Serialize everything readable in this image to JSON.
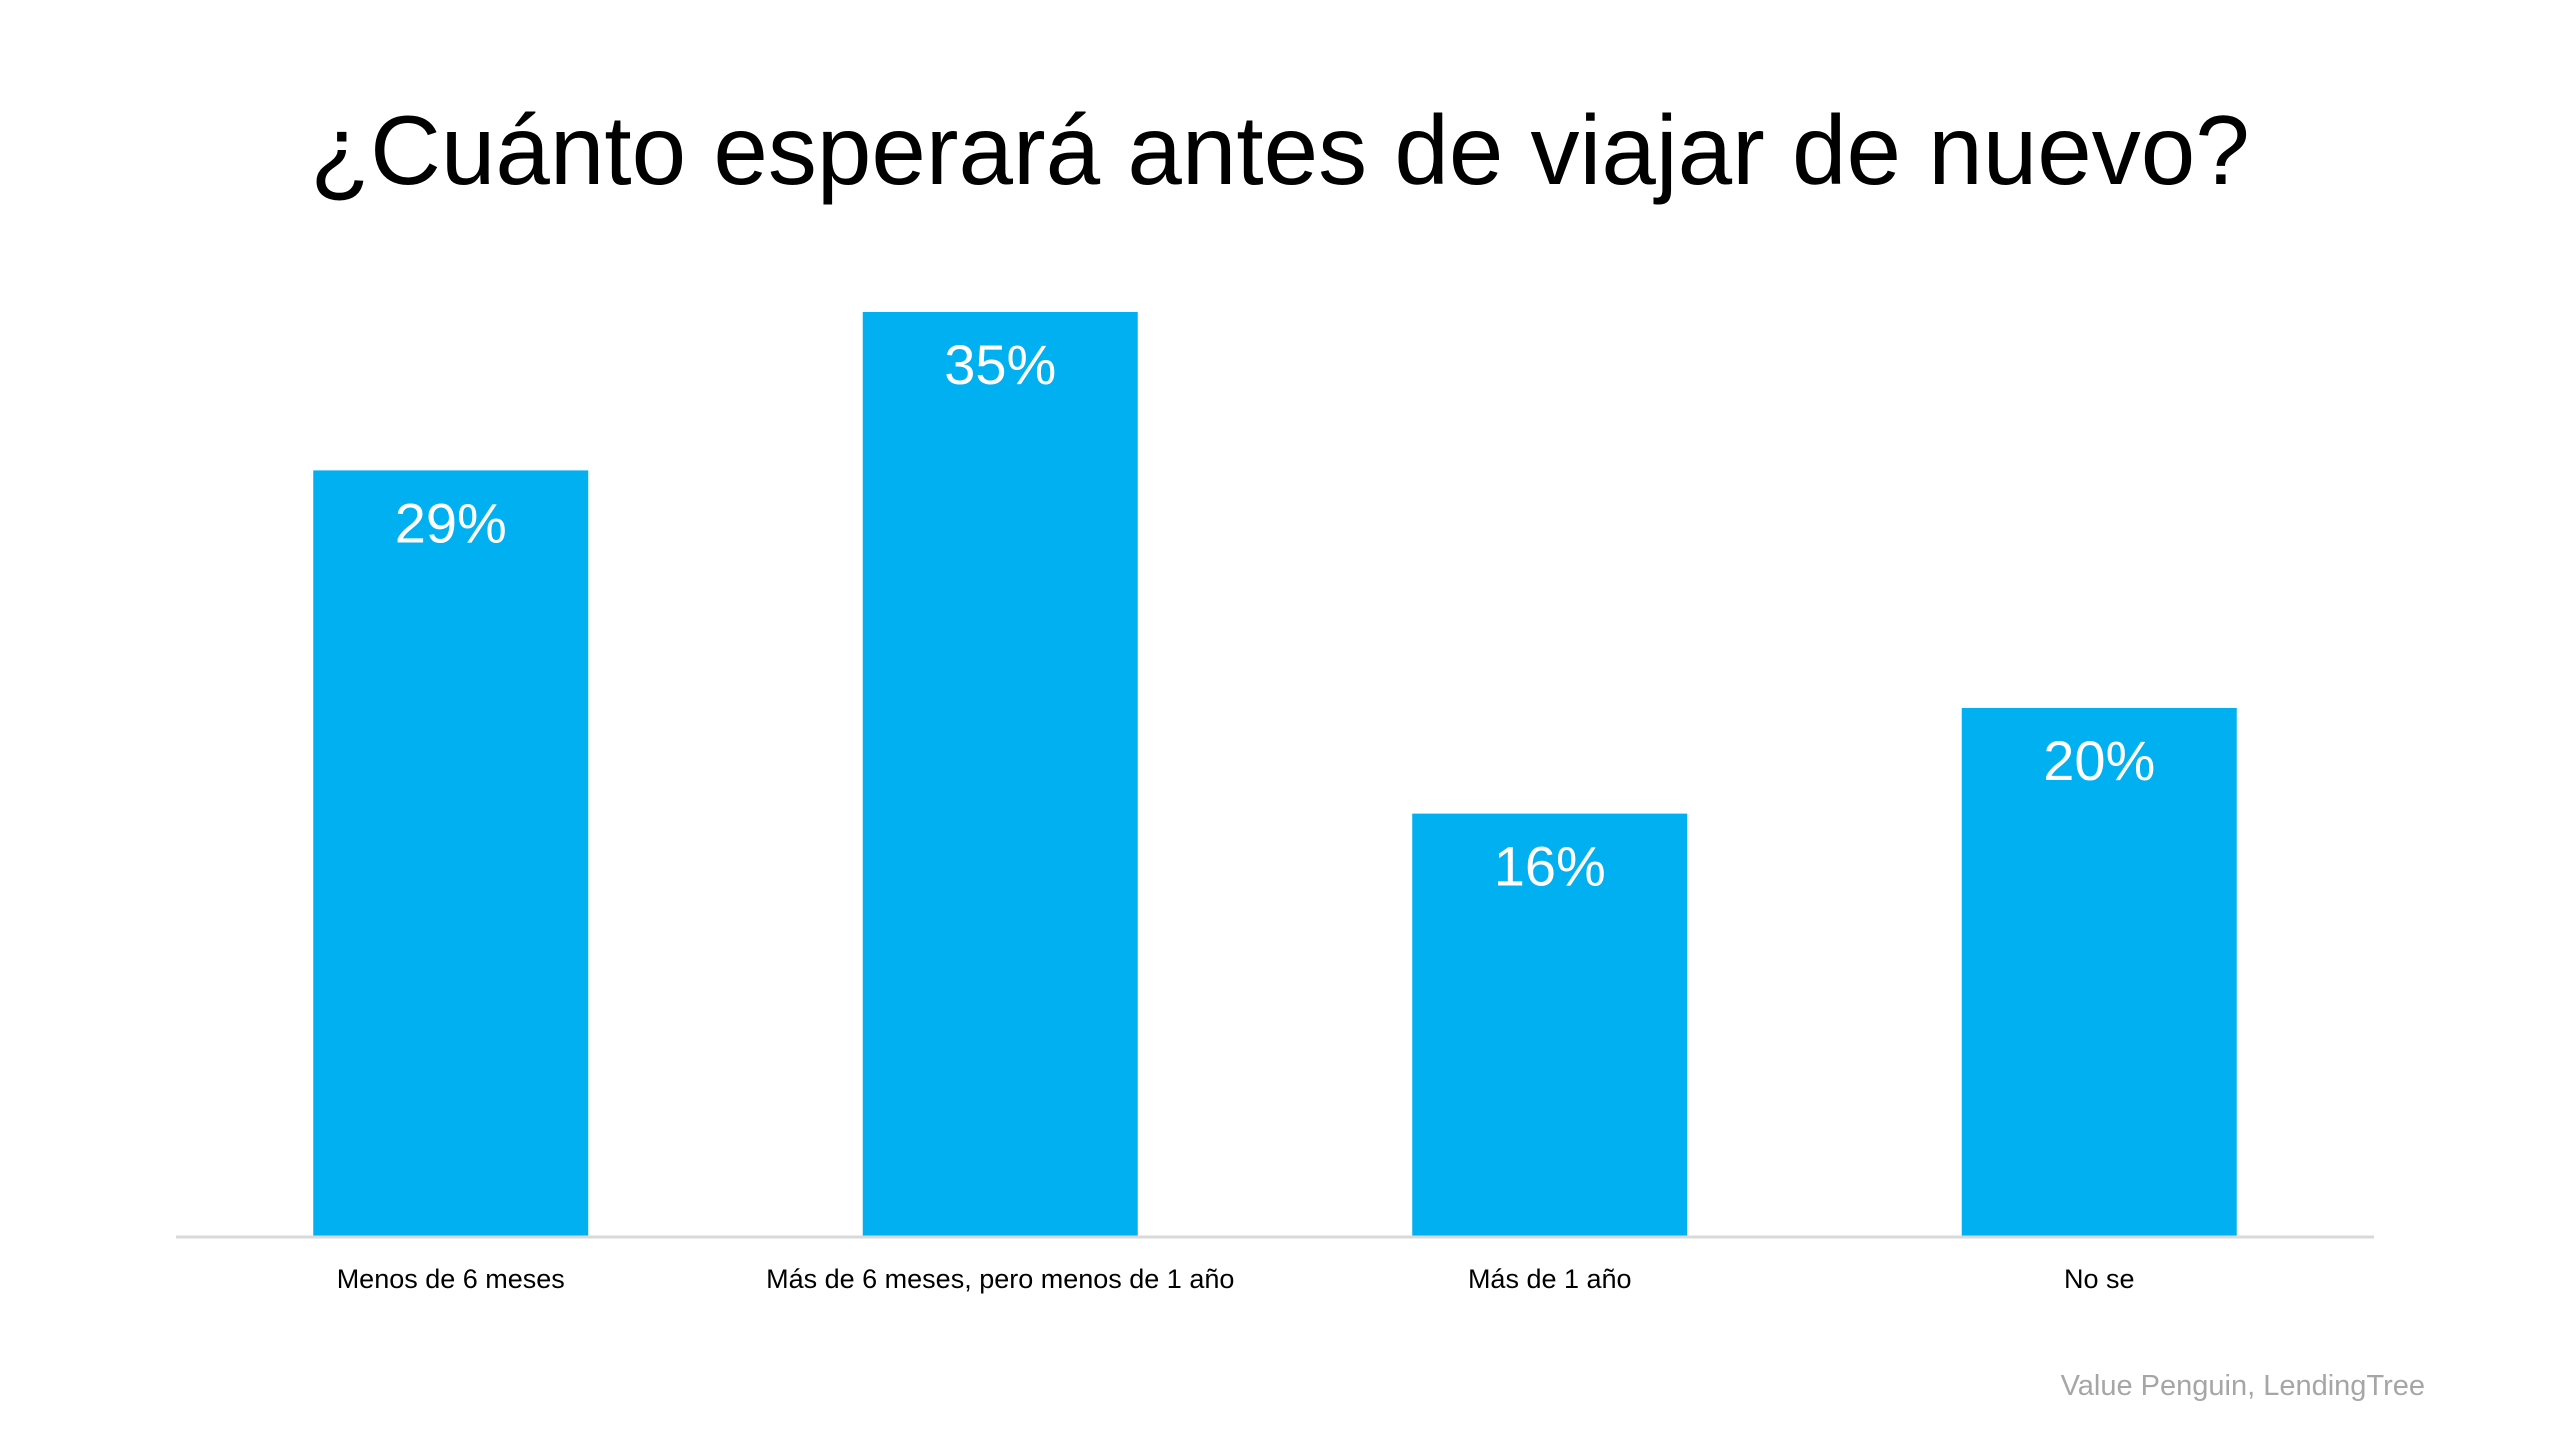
{
  "chart_data": {
    "type": "bar",
    "title": "¿Cuánto esperará antes de viajar de nuevo?",
    "categories": [
      "Menos de 6 meses",
      "Más de 6 meses, pero menos de 1 año",
      "Más de 1 año",
      "No se"
    ],
    "values": [
      29,
      35,
      16,
      20
    ],
    "data_labels": [
      "29%",
      "35%",
      "16%",
      "20%"
    ],
    "xlabel": "",
    "ylabel": "",
    "ylim": [
      0,
      40
    ],
    "grid": false,
    "legend": "none",
    "bar_color": "#00B0F0",
    "label_color": "#FFFFFF",
    "axis_color": "#D9D9D9"
  },
  "source": "Value Penguin, LendingTree"
}
